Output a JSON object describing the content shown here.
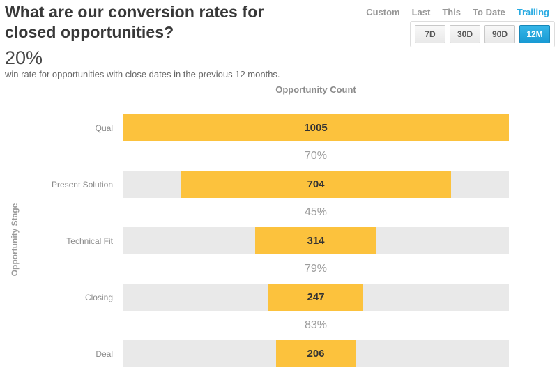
{
  "header": {
    "title": "What are our conversion rates for closed opportunities?",
    "metric_value": "20%",
    "metric_caption": "win rate for opportunities with close dates in the previous 12 months."
  },
  "time_controls": {
    "modes": [
      {
        "label": "Custom",
        "active": false
      },
      {
        "label": "Last",
        "active": false
      },
      {
        "label": "This",
        "active": false
      },
      {
        "label": "To Date",
        "active": false
      },
      {
        "label": "Trailing",
        "active": true
      }
    ],
    "ranges": [
      {
        "label": "7D",
        "active": false
      },
      {
        "label": "30D",
        "active": false
      },
      {
        "label": "90D",
        "active": false
      },
      {
        "label": "12M",
        "active": true
      }
    ]
  },
  "chart_data": {
    "type": "bar",
    "subtype": "horizontal-centered-funnel",
    "title": "Opportunity Count",
    "ylabel": "Opportunity Stage",
    "categories": [
      "Qual",
      "Present Solution",
      "Technical Fit",
      "Closing",
      "Deal"
    ],
    "values": [
      1005,
      704,
      314,
      247,
      206
    ],
    "conversion_rates": [
      "70%",
      "45%",
      "79%",
      "83%"
    ],
    "bar_color": "#fcc23d",
    "track_color": "#e9e9e9",
    "legend": "none",
    "grid": "off"
  },
  "colors": {
    "accent_blue": "#29abe2",
    "title_text": "#383838",
    "muted_text": "#9b9b9b"
  }
}
